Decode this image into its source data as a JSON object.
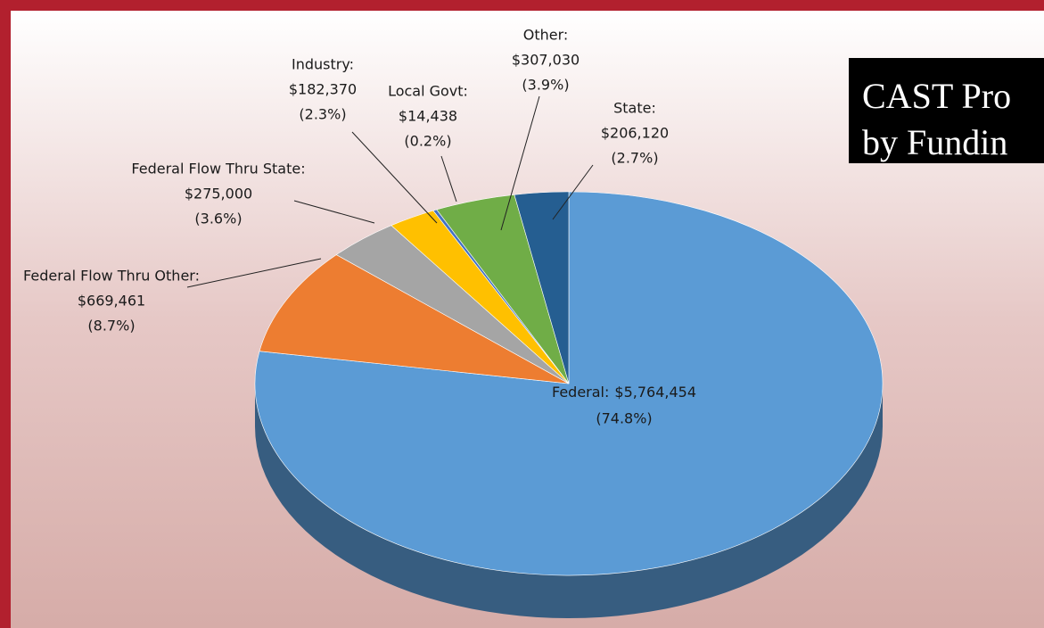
{
  "chart_data": {
    "type": "pie",
    "title": [
      "CAST Pro",
      "by Fundin"
    ],
    "categories": [
      "Federal:",
      "Federal Flow Thru Other:",
      "Federal Flow Thru State:",
      "Industry:",
      "Local Govt:",
      "Other:",
      "State:"
    ],
    "values": [
      5764454,
      669461,
      275000,
      182370,
      14438,
      307030,
      206120
    ],
    "value_labels": [
      "$5,764,454",
      "$669,461",
      "$275,000",
      "$182,370",
      "$14,438",
      "$307,030",
      "$206,120"
    ],
    "percents": [
      74.8,
      8.7,
      3.6,
      2.3,
      0.2,
      3.9,
      2.7
    ],
    "percent_labels": [
      "(74.8%)",
      "(8.7%)",
      "(3.6%)",
      "(2.3%)",
      "(0.2%)",
      "(3.9%)",
      "(2.7%)"
    ],
    "colors": [
      "#5b9bd5",
      "#ed7d31",
      "#a5a5a5",
      "#ffc000",
      "#4472c4",
      "#70ad47",
      "#255e91"
    ]
  }
}
